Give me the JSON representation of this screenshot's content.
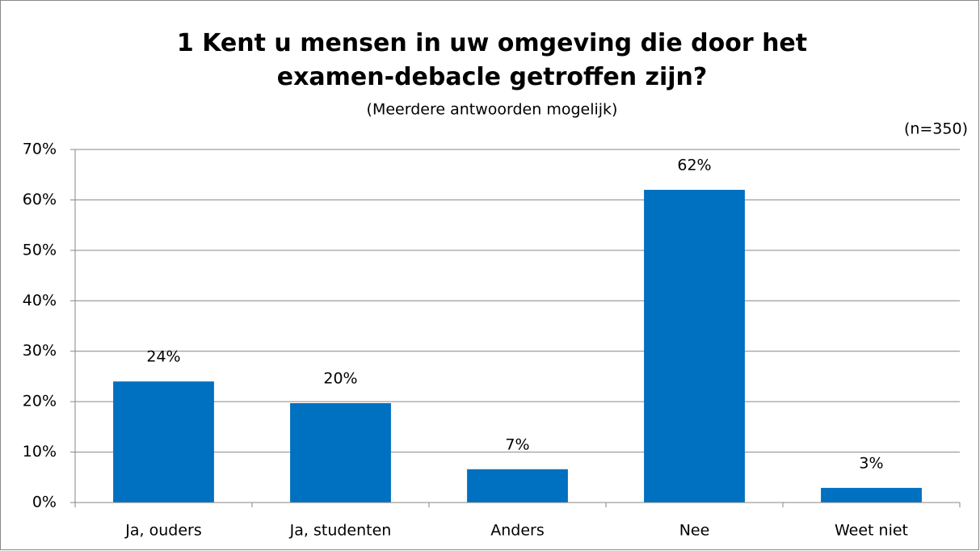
{
  "chart_data": {
    "type": "bar",
    "title": "1 Kent u mensen in uw omgeving die door het examen-debacle getroffen zijn?",
    "subtitle": "(Meerdere antwoorden mogelijk)",
    "annotations": [
      "(n=350)"
    ],
    "categories": [
      "Ja, ouders",
      "Ja, studenten",
      "Anders",
      "Nee",
      "Weet niet"
    ],
    "values": [
      24,
      19.7,
      6.6,
      62,
      2.9
    ],
    "value_labels": [
      "24%",
      "20%",
      "7%",
      "62%",
      "3%"
    ],
    "color": "#0070c0",
    "ylim": [
      0,
      70
    ],
    "yticks": [
      {
        "value": 0,
        "label": "0%"
      },
      {
        "value": 10,
        "label": "10%"
      },
      {
        "value": 20,
        "label": "20%"
      },
      {
        "value": 30,
        "label": "30%"
      },
      {
        "value": 40,
        "label": "40%"
      },
      {
        "value": 50,
        "label": "50%"
      },
      {
        "value": 60,
        "label": "60%"
      },
      {
        "value": 70,
        "label": "70%"
      }
    ],
    "grid": true
  }
}
